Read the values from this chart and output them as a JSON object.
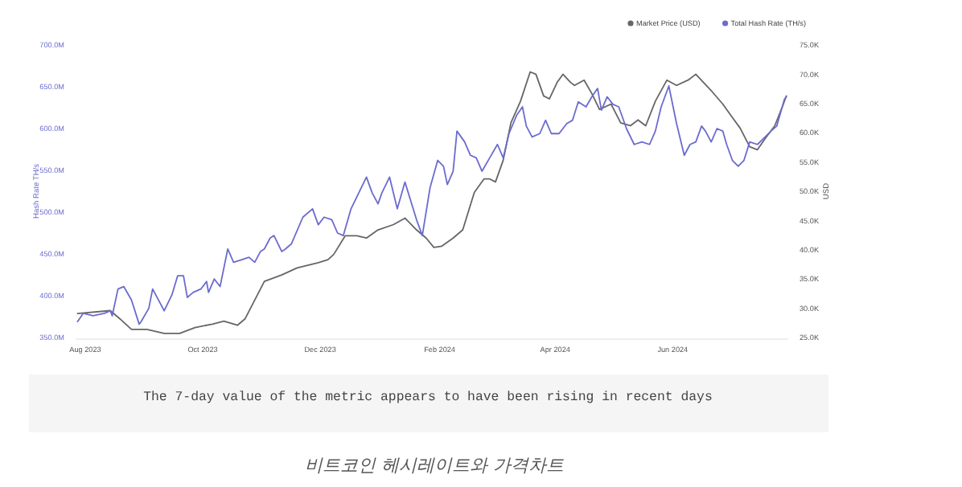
{
  "chart_data": {
    "type": "line",
    "ylabel": "Hash Rate TH/s",
    "y2label": "USD",
    "xlim": [
      "2023-07-27",
      "2024-07-31"
    ],
    "xticks": [
      {
        "value": "2023-08-01",
        "label": "Aug 2023"
      },
      {
        "value": "2023-10-01",
        "label": "Oct 2023"
      },
      {
        "value": "2023-12-01",
        "label": "Dec 2023"
      },
      {
        "value": "2024-02-01",
        "label": "Feb 2024"
      },
      {
        "value": "2024-04-01",
        "label": "Apr 2024"
      },
      {
        "value": "2024-06-01",
        "label": "Jun 2024"
      }
    ],
    "ylim": [
      350,
      700
    ],
    "yticks": [
      {
        "value": 350,
        "label": "350.0M"
      },
      {
        "value": 400,
        "label": "400.0M"
      },
      {
        "value": 450,
        "label": "450.0M"
      },
      {
        "value": 500,
        "label": "500.0M"
      },
      {
        "value": 550,
        "label": "550.0M"
      },
      {
        "value": 600,
        "label": "600.0M"
      },
      {
        "value": 650,
        "label": "650.0M"
      },
      {
        "value": 700,
        "label": "700.0M"
      }
    ],
    "y2lim": [
      25,
      75
    ],
    "y2ticks": [
      {
        "value": 25,
        "label": "25.0K"
      },
      {
        "value": 30,
        "label": "30.0K"
      },
      {
        "value": 35,
        "label": "35.0K"
      },
      {
        "value": 40,
        "label": "40.0K"
      },
      {
        "value": 45,
        "label": "45.0K"
      },
      {
        "value": 50,
        "label": "50.0K"
      },
      {
        "value": 55,
        "label": "55.0K"
      },
      {
        "value": 60,
        "label": "60.0K"
      },
      {
        "value": 65,
        "label": "65.0K"
      },
      {
        "value": 70,
        "label": "70.0K"
      },
      {
        "value": 75,
        "label": "75.0K"
      }
    ],
    "legend": "top right",
    "grid": false,
    "series": [
      {
        "name": "Market Price (USD)",
        "color": "#666666",
        "axis": "y2",
        "x": [
          "2023-07-28",
          "2023-08-14",
          "2023-08-19",
          "2023-08-25",
          "2023-09-02",
          "2023-09-11",
          "2023-09-19",
          "2023-09-27",
          "2023-10-06",
          "2023-10-12",
          "2023-10-19",
          "2023-10-23",
          "2023-10-28",
          "2023-11-02",
          "2023-11-11",
          "2023-11-19",
          "2023-11-30",
          "2023-12-05",
          "2023-12-08",
          "2023-12-14",
          "2023-12-20",
          "2023-12-25",
          "2023-12-31",
          "2024-01-08",
          "2024-01-14",
          "2024-01-20",
          "2024-01-25",
          "2024-01-29",
          "2024-02-02",
          "2024-02-08",
          "2024-02-13",
          "2024-02-19",
          "2024-02-24",
          "2024-02-27",
          "2024-03-01",
          "2024-03-05",
          "2024-03-09",
          "2024-03-14",
          "2024-03-19",
          "2024-03-22",
          "2024-03-26",
          "2024-03-29",
          "2024-04-02",
          "2024-04-05",
          "2024-04-09",
          "2024-04-11",
          "2024-04-16",
          "2024-04-20",
          "2024-04-24",
          "2024-04-30",
          "2024-05-05",
          "2024-05-10",
          "2024-05-14",
          "2024-05-18",
          "2024-05-23",
          "2024-05-29",
          "2024-06-03",
          "2024-06-09",
          "2024-06-13",
          "2024-06-17",
          "2024-06-21",
          "2024-06-27",
          "2024-07-02",
          "2024-07-06",
          "2024-07-11",
          "2024-07-15",
          "2024-07-19",
          "2024-07-24",
          "2024-07-28",
          "2024-07-30"
        ],
        "values": [
          29.1,
          29.6,
          28.2,
          26.4,
          26.4,
          25.7,
          25.7,
          26.7,
          27.3,
          27.8,
          27.1,
          28.2,
          31.4,
          34.6,
          35.7,
          36.9,
          37.8,
          38.3,
          39.2,
          42.4,
          42.4,
          42.0,
          43.4,
          44.3,
          45.4,
          43.4,
          42.0,
          40.4,
          40.6,
          42.0,
          43.4,
          49.8,
          52.1,
          52.1,
          51.6,
          55.3,
          61.7,
          65.4,
          70.4,
          70.0,
          66.3,
          65.8,
          68.6,
          70.0,
          68.6,
          68.1,
          69.0,
          66.7,
          64.0,
          64.9,
          61.7,
          61.2,
          62.2,
          61.2,
          65.4,
          69.0,
          68.1,
          69.0,
          70.0,
          68.6,
          67.2,
          64.9,
          62.6,
          60.8,
          57.6,
          57.1,
          59.0,
          61.2,
          64.5,
          66.3
        ]
      },
      {
        "name": "Total Hash Rate (TH/s)",
        "color": "#6b6bd0",
        "axis": "y",
        "x": [
          "2023-07-28",
          "2023-07-31",
          "2023-08-05",
          "2023-08-11",
          "2023-08-14",
          "2023-08-15",
          "2023-08-18",
          "2023-08-21",
          "2023-08-25",
          "2023-08-29",
          "2023-08-30",
          "2023-09-03",
          "2023-09-05",
          "2023-09-08",
          "2023-09-11",
          "2023-09-15",
          "2023-09-18",
          "2023-09-21",
          "2023-09-23",
          "2023-09-26",
          "2023-09-30",
          "2023-10-03",
          "2023-10-04",
          "2023-10-07",
          "2023-10-10",
          "2023-10-14",
          "2023-10-17",
          "2023-10-21",
          "2023-10-25",
          "2023-10-28",
          "2023-10-31",
          "2023-11-02",
          "2023-11-05",
          "2023-11-07",
          "2023-11-11",
          "2023-11-13",
          "2023-11-16",
          "2023-11-22",
          "2023-11-27",
          "2023-11-30",
          "2023-12-03",
          "2023-12-07",
          "2023-12-10",
          "2023-12-13",
          "2023-12-17",
          "2023-12-21",
          "2023-12-25",
          "2023-12-28",
          "2023-12-31",
          "2024-01-02",
          "2024-01-06",
          "2024-01-10",
          "2024-01-14",
          "2024-01-20",
          "2024-01-23",
          "2024-01-27",
          "2024-01-31",
          "2024-02-03",
          "2024-02-05",
          "2024-02-08",
          "2024-02-10",
          "2024-02-14",
          "2024-02-17",
          "2024-02-20",
          "2024-02-23",
          "2024-02-27",
          "2024-03-02",
          "2024-03-05",
          "2024-03-08",
          "2024-03-12",
          "2024-03-15",
          "2024-03-17",
          "2024-03-20",
          "2024-03-24",
          "2024-03-27",
          "2024-03-30",
          "2024-04-03",
          "2024-04-07",
          "2024-04-10",
          "2024-04-13",
          "2024-04-17",
          "2024-04-20",
          "2024-04-23",
          "2024-04-25",
          "2024-04-28",
          "2024-05-01",
          "2024-05-04",
          "2024-05-08",
          "2024-05-12",
          "2024-05-16",
          "2024-05-20",
          "2024-05-23",
          "2024-05-26",
          "2024-05-30",
          "2024-06-03",
          "2024-06-07",
          "2024-06-10",
          "2024-06-13",
          "2024-06-16",
          "2024-06-18",
          "2024-06-21",
          "2024-06-24",
          "2024-06-27",
          "2024-06-29",
          "2024-07-02",
          "2024-07-05",
          "2024-07-08",
          "2024-07-11",
          "2024-07-15",
          "2024-07-19",
          "2024-07-22",
          "2024-07-25",
          "2024-07-29",
          "2024-07-30"
        ],
        "values": [
          369,
          379,
          376,
          379,
          382,
          376,
          408,
          411,
          395,
          366,
          369,
          385,
          408,
          395,
          382,
          401,
          424,
          424,
          398,
          404,
          408,
          417,
          404,
          420,
          411,
          456,
          440,
          443,
          446,
          440,
          453,
          456,
          469,
          472,
          453,
          456,
          462,
          494,
          504,
          485,
          494,
          491,
          475,
          472,
          504,
          523,
          542,
          523,
          510,
          523,
          542,
          504,
          536,
          491,
          472,
          529,
          562,
          555,
          533,
          549,
          597,
          584,
          568,
          565,
          549,
          565,
          581,
          565,
          594,
          616,
          626,
          603,
          590,
          594,
          610,
          594,
          594,
          606,
          610,
          632,
          626,
          638,
          648,
          622,
          638,
          629,
          626,
          600,
          581,
          584,
          581,
          597,
          626,
          651,
          606,
          568,
          581,
          584,
          603,
          597,
          584,
          600,
          597,
          581,
          562,
          555,
          562,
          584,
          581,
          590,
          597,
          603,
          635,
          638
        ]
      }
    ],
    "annotations": [
      "The 7-day value of the metric appears to have been rising in recent days",
      "비트코인 헤시레이트와 가격차트"
    ]
  }
}
